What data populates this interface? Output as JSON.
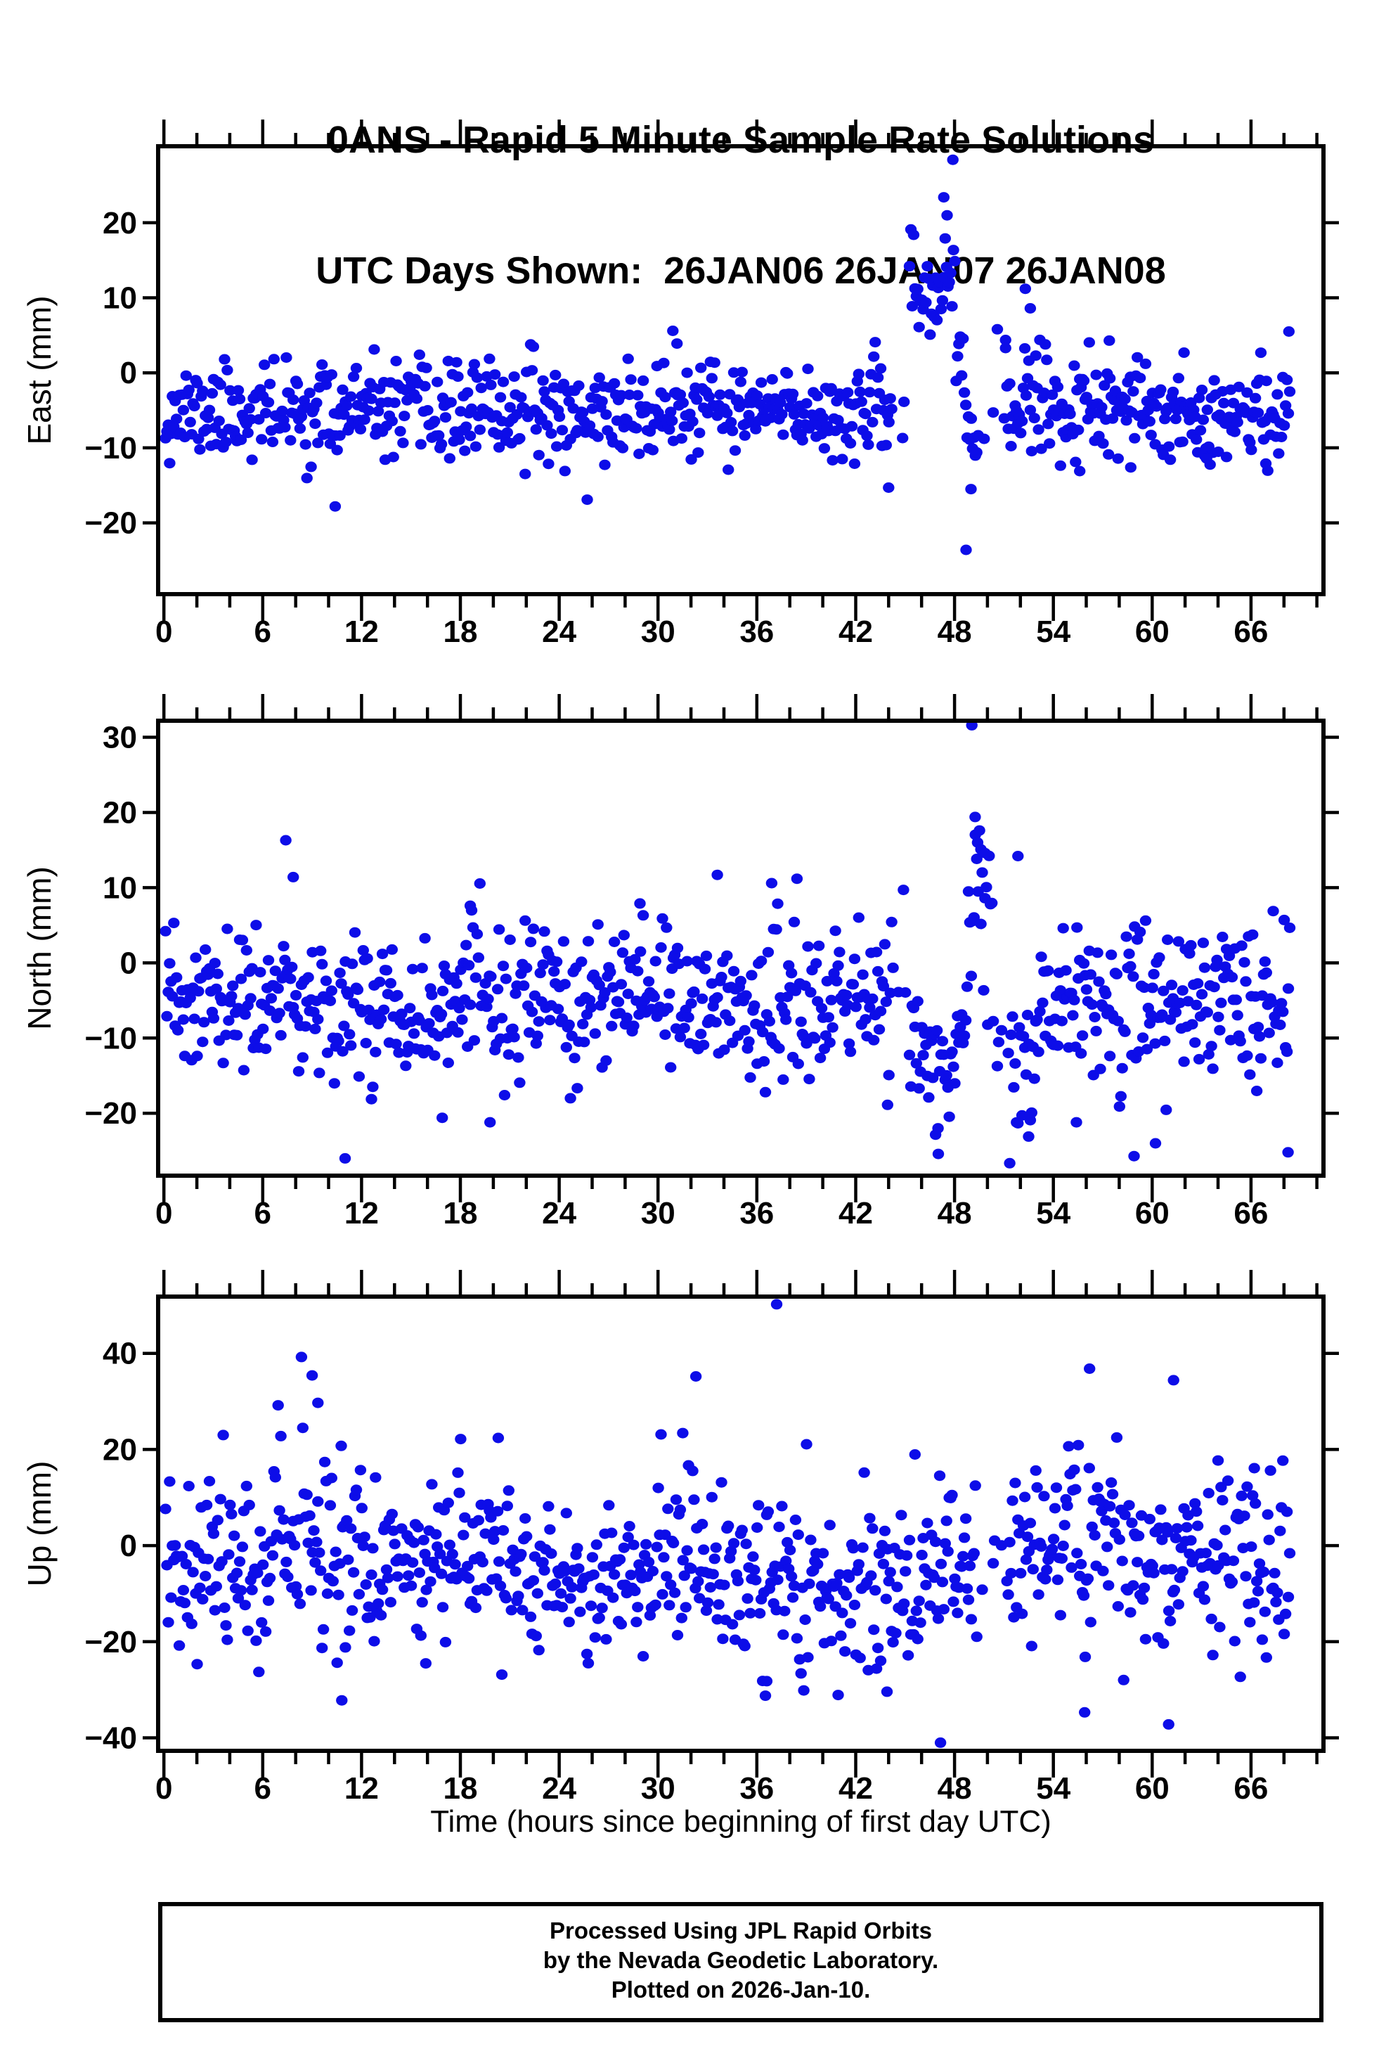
{
  "page": {
    "title": "0ANS - Rapid 5 Minute Sample Rate Solutions",
    "subtitle": "UTC Days Shown:  26JAN06 26JAN07 26JAN08",
    "x_axis_label": "Time (hours since beginning of first day UTC)",
    "footer_lines": [
      "Processed Using JPL Rapid Orbits",
      "by the Nevada Geodetic Laboratory.",
      "Plotted on 2026-Jan-10."
    ]
  },
  "colors": {
    "marker": "#0d0de8",
    "axis": "#000000",
    "text": "#000000",
    "background": "#ffffff"
  },
  "marker": {
    "shape": "ellipse",
    "rx": 8.2,
    "ry": 7.5
  },
  "chart_data": [
    {
      "type": "scatter",
      "name": "east",
      "ylabel": "East (mm)",
      "xlabel": "",
      "xlim": [
        -0.35,
        70.4
      ],
      "ylim": [
        -29.5,
        30.2
      ],
      "x_major_ticks": [
        0,
        6,
        12,
        18,
        24,
        30,
        36,
        42,
        48,
        54,
        60,
        66
      ],
      "x_minor_step": 2,
      "y_ticks": [
        -20,
        -10,
        0,
        10,
        20
      ],
      "grid": false,
      "points_spec": {
        "seed": 11,
        "t_start": 0.1,
        "t_end": 68.35,
        "samples_per_hour": 12,
        "baseline": {
          "mean": -5.2,
          "std": 3.1
        },
        "windows": [
          {
            "from": 45.2,
            "to": 48.05,
            "y_start": 7,
            "y_end": 14,
            "std": 3.4
          },
          {
            "from": 48.05,
            "to": 49.45,
            "y_start": 4,
            "y_end": -13,
            "std": 2.8
          },
          {
            "from": 51.0,
            "to": 54.5,
            "mean": -4.5,
            "std": 4.4
          }
        ],
        "gaps": [
          {
            "from": 44.25,
            "to": 45.2,
            "keep": 0.25
          },
          {
            "from": 49.45,
            "to": 51.0,
            "keep": 0.1
          }
        ],
        "outliers": [
          [
            10.4,
            -17.8
          ],
          [
            25.7,
            -16.9
          ],
          [
            44.0,
            -15.3
          ],
          [
            47.35,
            23.4
          ],
          [
            47.9,
            28.4
          ],
          [
            47.55,
            21.0
          ],
          [
            48.7,
            -23.6
          ],
          [
            49.0,
            -15.5
          ],
          [
            30.9,
            5.6
          ],
          [
            31.15,
            3.9
          ],
          [
            68.3,
            5.5
          ],
          [
            57.4,
            4.3
          ],
          [
            52.3,
            11.2
          ],
          [
            52.6,
            8.6
          ],
          [
            50.6,
            5.8
          ],
          [
            51.1,
            3.3
          ],
          [
            49.8,
            -8.8
          ],
          [
            55.6,
            -13.1
          ],
          [
            58.7,
            -12.6
          ],
          [
            63.3,
            -11.4
          ],
          [
            66.9,
            -12.1
          ]
        ]
      }
    },
    {
      "type": "scatter",
      "name": "north",
      "ylabel": "North (mm)",
      "xlabel": "",
      "xlim": [
        -0.35,
        70.4
      ],
      "ylim": [
        -28.3,
        32.2
      ],
      "x_major_ticks": [
        0,
        6,
        12,
        18,
        24,
        30,
        36,
        42,
        48,
        54,
        60,
        66
      ],
      "x_minor_step": 2,
      "y_ticks": [
        -20,
        -10,
        0,
        10,
        20,
        30
      ],
      "grid": false,
      "points_spec": {
        "seed": 23,
        "t_start": 0.1,
        "t_end": 68.35,
        "samples_per_hour": 12,
        "baseline": {
          "mean": -5.5,
          "std": 4.9
        },
        "windows": [
          {
            "from": 45.3,
            "to": 48.6,
            "mean": -12.5,
            "std": 4.5
          },
          {
            "from": 48.8,
            "to": 50.3,
            "mean": 4,
            "std": 9
          },
          {
            "from": 51.2,
            "to": 53.3,
            "mean": -13,
            "std": 5.5
          }
        ],
        "gaps": [
          {
            "from": 44.3,
            "to": 45.3,
            "keep": 0.3
          },
          {
            "from": 50.3,
            "to": 51.2,
            "keep": 0.15
          }
        ],
        "outliers": [
          [
            7.4,
            16.3
          ],
          [
            7.85,
            11.4
          ],
          [
            11.0,
            -26.0
          ],
          [
            49.05,
            31.6
          ],
          [
            49.25,
            19.4
          ],
          [
            49.4,
            16.0
          ],
          [
            49.6,
            15.1
          ],
          [
            49.85,
            14.6
          ],
          [
            51.85,
            14.2
          ],
          [
            58.9,
            -25.7
          ],
          [
            68.25,
            -25.2
          ],
          [
            19.8,
            -21.2
          ],
          [
            16.9,
            -20.6
          ],
          [
            36.9,
            10.6
          ],
          [
            33.6,
            11.7
          ],
          [
            44.9,
            9.7
          ],
          [
            47.0,
            -22.0
          ],
          [
            52.5,
            -23.1
          ],
          [
            55.4,
            -21.2
          ],
          [
            60.2,
            -24.0
          ],
          [
            18.6,
            7.6
          ],
          [
            28.9,
            7.9
          ]
        ]
      }
    },
    {
      "type": "scatter",
      "name": "up",
      "ylabel": "Up (mm)",
      "xlabel": "Time (hours since beginning of first day UTC)",
      "xlim": [
        -0.35,
        70.4
      ],
      "ylim": [
        -42.7,
        51.8
      ],
      "x_major_ticks": [
        0,
        6,
        12,
        18,
        24,
        30,
        36,
        42,
        48,
        54,
        60,
        66
      ],
      "x_minor_step": 2,
      "y_ticks": [
        -40,
        -20,
        0,
        20,
        40
      ],
      "grid": false,
      "points_spec": {
        "seed": 37,
        "t_start": 0.1,
        "t_end": 68.35,
        "samples_per_hour": 12,
        "baseline": {
          "mean": -2.5,
          "std": 8.8
        },
        "windows": [
          {
            "from": 6.5,
            "to": 11.5,
            "mean": 2,
            "std": 12
          },
          {
            "from": 22,
            "to": 30,
            "mean": -7,
            "std": 6.5
          },
          {
            "from": 33.5,
            "to": 47.5,
            "mean": -8,
            "std": 9.5
          },
          {
            "from": 51.5,
            "to": 58,
            "mean": 1,
            "std": 10.5
          }
        ],
        "gaps": [
          {
            "from": 49.4,
            "to": 51.2,
            "keep": 0.12
          }
        ],
        "outliers": [
          [
            9.0,
            35.4
          ],
          [
            9.35,
            29.7
          ],
          [
            32.3,
            35.2
          ],
          [
            31.5,
            23.4
          ],
          [
            37.2,
            50.2
          ],
          [
            47.15,
            -41.0
          ],
          [
            10.8,
            -32.2
          ],
          [
            56.2,
            36.8
          ],
          [
            61.3,
            34.4
          ],
          [
            55.9,
            -34.7
          ],
          [
            61.0,
            -37.2
          ],
          [
            20.3,
            22.4
          ],
          [
            64.0,
            17.7
          ],
          [
            43.9,
            -30.4
          ],
          [
            36.6,
            -28.2
          ],
          [
            66.2,
            16.1
          ],
          [
            15.9,
            -24.5
          ]
        ]
      }
    }
  ]
}
